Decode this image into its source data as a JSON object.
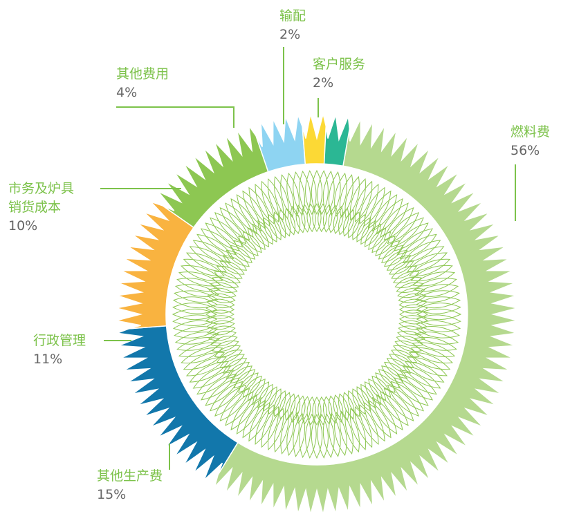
{
  "chart_data": {
    "type": "pie",
    "categories": [
      "燃料费",
      "其他生产费",
      "行政管理",
      "市务及炉具销货成本",
      "其他费用",
      "输配",
      "客户服务"
    ],
    "values": [
      56,
      15,
      11,
      10,
      4,
      2,
      2
    ],
    "value_labels": [
      "56%",
      "15%",
      "11%",
      "10%",
      "4%",
      "2%",
      "2%"
    ],
    "colors": [
      "#b5d98f",
      "#1277ab",
      "#f9b340",
      "#8dc752",
      "#8ed4f2",
      "#fcd935",
      "#2bb794"
    ]
  }
}
